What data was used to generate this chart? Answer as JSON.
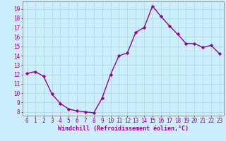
{
  "x": [
    0,
    1,
    2,
    3,
    4,
    5,
    6,
    7,
    8,
    9,
    10,
    11,
    12,
    13,
    14,
    15,
    16,
    17,
    18,
    19,
    20,
    21,
    22,
    23
  ],
  "y": [
    12.1,
    12.3,
    11.8,
    9.9,
    8.9,
    8.3,
    8.1,
    8.0,
    7.9,
    9.5,
    12.0,
    14.0,
    14.3,
    16.5,
    17.0,
    19.3,
    18.2,
    17.2,
    16.3,
    15.3,
    15.3,
    14.9,
    15.1,
    14.2
  ],
  "line_color": "#990099",
  "marker": "D",
  "marker_size": 2.2,
  "bg_color": "#cceeff",
  "grid_color": "#aadddd",
  "xlabel": "Windchill (Refroidissement éolien,°C)",
  "xlabel_color": "#990099",
  "tick_color": "#990099",
  "spine_color": "#888888",
  "ylim": [
    7.6,
    19.8
  ],
  "yticks": [
    8,
    9,
    10,
    11,
    12,
    13,
    14,
    15,
    16,
    17,
    18,
    19
  ],
  "xlim": [
    -0.5,
    23.5
  ],
  "xticks": [
    0,
    1,
    2,
    3,
    4,
    5,
    6,
    7,
    8,
    9,
    10,
    11,
    12,
    13,
    14,
    15,
    16,
    17,
    18,
    19,
    20,
    21,
    22,
    23
  ],
  "xlabel_fontsize": 6.0,
  "tick_fontsize": 5.5,
  "linewidth": 1.0
}
